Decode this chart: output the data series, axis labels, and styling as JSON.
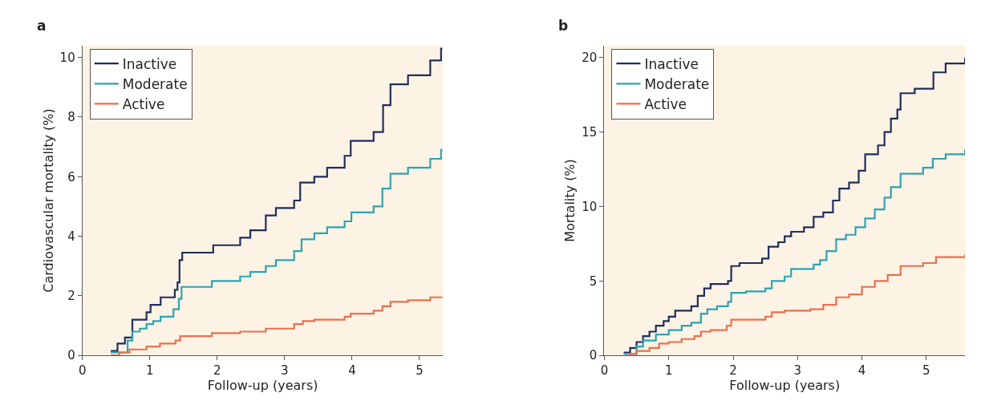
{
  "chart_data": [
    {
      "type": "step",
      "title": "a",
      "xlabel": "Follow-up (years)",
      "ylabel": "Cardiovascular mortality (%)",
      "xlim": [
        0,
        5.35
      ],
      "ylim": [
        0,
        10.4
      ],
      "xticks": [
        0,
        1,
        2,
        3,
        4,
        5
      ],
      "yticks": [
        0,
        2,
        4,
        6,
        8,
        10
      ],
      "grid": false,
      "legend": "top left",
      "series": [
        {
          "name": "Inactive",
          "color": "#1f2d5c",
          "x": [
            0.42,
            0.52,
            0.63,
            0.74,
            0.95,
            1.01,
            1.16,
            1.37,
            1.41,
            1.44,
            1.48,
            1.94,
            2.34,
            2.49,
            2.72,
            2.87,
            3.14,
            3.23,
            3.44,
            3.63,
            3.89,
            3.98,
            4.32,
            4.46,
            4.57,
            4.83,
            5.16,
            5.32,
            5.34
          ],
          "values": [
            0.15,
            0.4,
            0.6,
            1.2,
            1.45,
            1.7,
            1.95,
            2.2,
            2.45,
            3.2,
            3.45,
            3.7,
            3.95,
            4.2,
            4.7,
            4.95,
            5.2,
            5.8,
            6.0,
            6.3,
            6.7,
            7.2,
            7.5,
            8.4,
            9.1,
            9.4,
            9.9,
            10.3,
            10.3
          ]
        },
        {
          "name": "Moderate",
          "color": "#2ba3b3",
          "x": [
            0.42,
            0.67,
            0.74,
            0.85,
            0.95,
            1.05,
            1.16,
            1.35,
            1.43,
            1.47,
            1.92,
            2.34,
            2.49,
            2.72,
            2.87,
            3.14,
            3.25,
            3.44,
            3.63,
            3.89,
            3.99,
            4.32,
            4.45,
            4.57,
            4.83,
            5.16,
            5.32,
            5.34
          ],
          "values": [
            0.1,
            0.5,
            0.8,
            0.9,
            1.05,
            1.15,
            1.3,
            1.55,
            1.9,
            2.3,
            2.5,
            2.65,
            2.8,
            3.0,
            3.2,
            3.5,
            3.9,
            4.1,
            4.3,
            4.5,
            4.8,
            5.0,
            5.6,
            6.1,
            6.3,
            6.6,
            6.9,
            6.9
          ]
        },
        {
          "name": "Active",
          "color": "#e8704e",
          "x": [
            0.42,
            0.55,
            0.7,
            0.95,
            1.15,
            1.38,
            1.45,
            1.92,
            2.34,
            2.72,
            3.14,
            3.27,
            3.44,
            3.89,
            3.98,
            4.32,
            4.45,
            4.57,
            4.83,
            5.16,
            5.34
          ],
          "values": [
            0.0,
            0.1,
            0.2,
            0.3,
            0.4,
            0.5,
            0.65,
            0.75,
            0.8,
            0.9,
            1.05,
            1.15,
            1.2,
            1.3,
            1.4,
            1.5,
            1.65,
            1.8,
            1.85,
            1.95,
            1.95
          ]
        }
      ]
    },
    {
      "type": "step",
      "title": "b",
      "xlabel": "Follow-up (years)",
      "ylabel": "Mortality (%)",
      "xlim": [
        0,
        5.6
      ],
      "ylim": [
        0,
        20.8
      ],
      "xticks": [
        0,
        1,
        2,
        3,
        4,
        5
      ],
      "yticks": [
        0,
        5,
        10,
        15,
        20
      ],
      "grid": false,
      "legend": "top left",
      "series": [
        {
          "name": "Inactive",
          "color": "#1f2d5c",
          "x": [
            0.3,
            0.4,
            0.5,
            0.6,
            0.7,
            0.8,
            0.92,
            1.0,
            1.1,
            1.35,
            1.45,
            1.55,
            1.65,
            1.92,
            1.97,
            2.1,
            2.45,
            2.55,
            2.7,
            2.8,
            2.9,
            3.1,
            3.25,
            3.4,
            3.55,
            3.65,
            3.8,
            3.95,
            4.05,
            4.25,
            4.35,
            4.45,
            4.55,
            4.6,
            4.82,
            5.11,
            5.3,
            5.6
          ],
          "values": [
            0.2,
            0.5,
            0.9,
            1.3,
            1.6,
            2.0,
            2.3,
            2.6,
            3.0,
            3.3,
            4.0,
            4.5,
            4.8,
            5.0,
            6.0,
            6.2,
            6.5,
            7.3,
            7.6,
            8.0,
            8.3,
            8.6,
            9.3,
            9.6,
            10.4,
            11.2,
            11.6,
            12.4,
            13.5,
            14.1,
            15.0,
            15.9,
            16.5,
            17.6,
            17.9,
            19.0,
            19.6,
            20.0
          ]
        },
        {
          "name": "Moderate",
          "color": "#2ba3b3",
          "x": [
            0.3,
            0.5,
            0.6,
            0.8,
            1.0,
            1.2,
            1.35,
            1.5,
            1.6,
            1.75,
            1.92,
            1.97,
            2.2,
            2.5,
            2.6,
            2.8,
            2.9,
            3.25,
            3.35,
            3.45,
            3.6,
            3.75,
            3.9,
            4.05,
            4.2,
            4.35,
            4.45,
            4.6,
            4.95,
            5.1,
            5.3,
            5.6
          ],
          "values": [
            0.1,
            0.6,
            1.0,
            1.4,
            1.7,
            2.0,
            2.2,
            2.8,
            3.1,
            3.3,
            3.6,
            4.2,
            4.3,
            4.5,
            5.0,
            5.3,
            5.8,
            6.1,
            6.4,
            7.0,
            7.8,
            8.1,
            8.6,
            9.2,
            9.8,
            10.6,
            11.3,
            12.2,
            12.6,
            13.2,
            13.5,
            13.8
          ]
        },
        {
          "name": "Active",
          "color": "#e8704e",
          "x": [
            0.35,
            0.5,
            0.7,
            0.85,
            1.0,
            1.2,
            1.4,
            1.5,
            1.65,
            1.9,
            1.97,
            2.5,
            2.6,
            2.8,
            3.2,
            3.4,
            3.6,
            3.8,
            4.0,
            4.2,
            4.4,
            4.6,
            4.95,
            5.15,
            5.6
          ],
          "values": [
            0.1,
            0.3,
            0.5,
            0.8,
            0.9,
            1.1,
            1.3,
            1.6,
            1.7,
            2.0,
            2.4,
            2.6,
            2.9,
            3.0,
            3.1,
            3.4,
            3.9,
            4.1,
            4.6,
            5.0,
            5.4,
            6.0,
            6.2,
            6.6,
            6.8
          ]
        }
      ]
    }
  ]
}
